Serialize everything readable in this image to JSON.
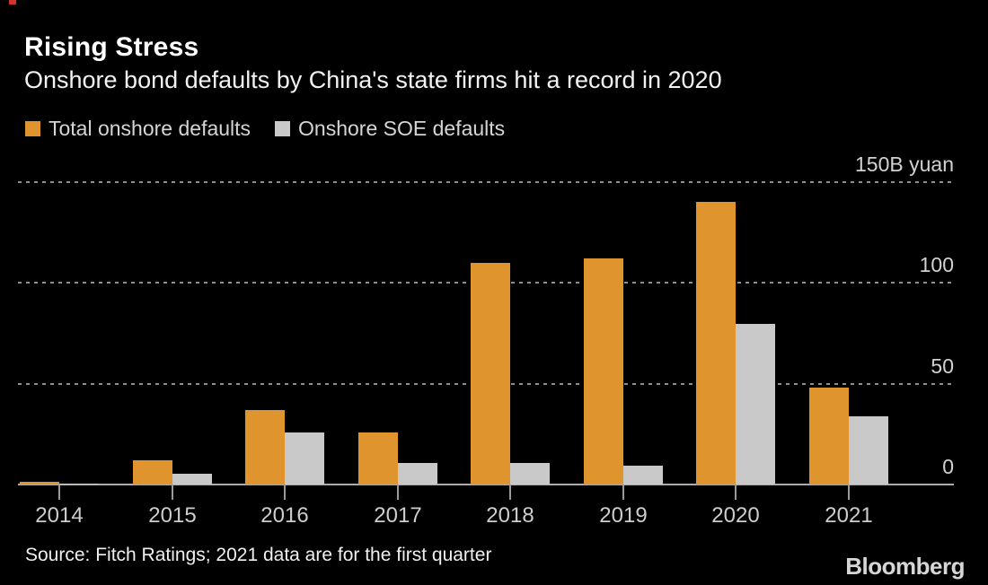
{
  "header": {
    "title": "Rising Stress",
    "subtitle": "Onshore bond defaults by China's state firms hit a record in 2020"
  },
  "legend": {
    "items": [
      {
        "label": "Total onshore defaults",
        "color": "#E0942E"
      },
      {
        "label": "Onshore SOE defaults",
        "color": "#C9C9C9"
      }
    ]
  },
  "footer": {
    "source": "Source: Fitch Ratings; 2021 data are for the first quarter",
    "brand": "Bloomberg"
  },
  "colors": {
    "background": "#000000",
    "bar_orange": "#E0942E",
    "bar_gray": "#C9C9C9",
    "gridline": "#8F8F8F",
    "baseline": "#ABABAB",
    "text": "#FFFFFF",
    "red_marker": "#D0342C"
  },
  "chart_data": {
    "type": "bar",
    "title": "Rising Stress",
    "subtitle": "Onshore bond defaults by China's state firms hit a record in 2020",
    "unit": "B yuan",
    "categories": [
      "2014",
      "2015",
      "2016",
      "2017",
      "2018",
      "2019",
      "2020",
      "2021"
    ],
    "series": [
      {
        "name": "Total onshore defaults",
        "color": "#E0942E",
        "values": [
          1.5,
          12,
          37,
          26,
          110,
          112,
          140,
          48
        ]
      },
      {
        "name": "Onshore SOE defaults",
        "color": "#C9C9C9",
        "values": [
          0.5,
          5.5,
          26,
          10.5,
          10.5,
          9.5,
          79.5,
          34
        ]
      }
    ],
    "ylim": [
      0,
      150
    ],
    "yticks": [
      {
        "value": 0,
        "label": "0"
      },
      {
        "value": 50,
        "label": "50"
      },
      {
        "value": 100,
        "label": "100"
      },
      {
        "value": 150,
        "label": "150B yuan"
      }
    ],
    "grid": "dashed-horizontal",
    "legend_position": "top-left"
  }
}
